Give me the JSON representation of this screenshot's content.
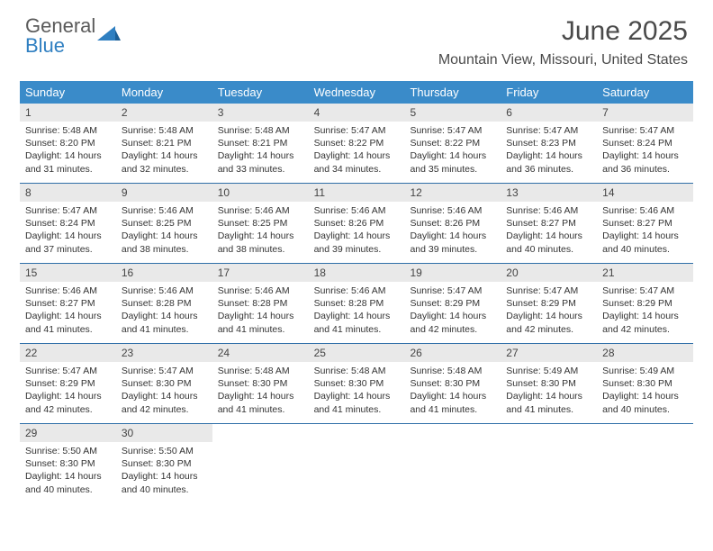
{
  "logo": {
    "text1": "General",
    "text2": "Blue"
  },
  "title": "June 2025",
  "location": "Mountain View, Missouri, United States",
  "colors": {
    "header_bg": "#3a8bc9",
    "header_text": "#ffffff",
    "daynum_bg": "#e9e9e9",
    "week_border": "#2f6fa8",
    "logo_gray": "#5a5a5a",
    "logo_blue": "#2f7fc1"
  },
  "day_headers": [
    "Sunday",
    "Monday",
    "Tuesday",
    "Wednesday",
    "Thursday",
    "Friday",
    "Saturday"
  ],
  "weeks": [
    [
      {
        "n": "1",
        "sr": "Sunrise: 5:48 AM",
        "ss": "Sunset: 8:20 PM",
        "d1": "Daylight: 14 hours",
        "d2": "and 31 minutes."
      },
      {
        "n": "2",
        "sr": "Sunrise: 5:48 AM",
        "ss": "Sunset: 8:21 PM",
        "d1": "Daylight: 14 hours",
        "d2": "and 32 minutes."
      },
      {
        "n": "3",
        "sr": "Sunrise: 5:48 AM",
        "ss": "Sunset: 8:21 PM",
        "d1": "Daylight: 14 hours",
        "d2": "and 33 minutes."
      },
      {
        "n": "4",
        "sr": "Sunrise: 5:47 AM",
        "ss": "Sunset: 8:22 PM",
        "d1": "Daylight: 14 hours",
        "d2": "and 34 minutes."
      },
      {
        "n": "5",
        "sr": "Sunrise: 5:47 AM",
        "ss": "Sunset: 8:22 PM",
        "d1": "Daylight: 14 hours",
        "d2": "and 35 minutes."
      },
      {
        "n": "6",
        "sr": "Sunrise: 5:47 AM",
        "ss": "Sunset: 8:23 PM",
        "d1": "Daylight: 14 hours",
        "d2": "and 36 minutes."
      },
      {
        "n": "7",
        "sr": "Sunrise: 5:47 AM",
        "ss": "Sunset: 8:24 PM",
        "d1": "Daylight: 14 hours",
        "d2": "and 36 minutes."
      }
    ],
    [
      {
        "n": "8",
        "sr": "Sunrise: 5:47 AM",
        "ss": "Sunset: 8:24 PM",
        "d1": "Daylight: 14 hours",
        "d2": "and 37 minutes."
      },
      {
        "n": "9",
        "sr": "Sunrise: 5:46 AM",
        "ss": "Sunset: 8:25 PM",
        "d1": "Daylight: 14 hours",
        "d2": "and 38 minutes."
      },
      {
        "n": "10",
        "sr": "Sunrise: 5:46 AM",
        "ss": "Sunset: 8:25 PM",
        "d1": "Daylight: 14 hours",
        "d2": "and 38 minutes."
      },
      {
        "n": "11",
        "sr": "Sunrise: 5:46 AM",
        "ss": "Sunset: 8:26 PM",
        "d1": "Daylight: 14 hours",
        "d2": "and 39 minutes."
      },
      {
        "n": "12",
        "sr": "Sunrise: 5:46 AM",
        "ss": "Sunset: 8:26 PM",
        "d1": "Daylight: 14 hours",
        "d2": "and 39 minutes."
      },
      {
        "n": "13",
        "sr": "Sunrise: 5:46 AM",
        "ss": "Sunset: 8:27 PM",
        "d1": "Daylight: 14 hours",
        "d2": "and 40 minutes."
      },
      {
        "n": "14",
        "sr": "Sunrise: 5:46 AM",
        "ss": "Sunset: 8:27 PM",
        "d1": "Daylight: 14 hours",
        "d2": "and 40 minutes."
      }
    ],
    [
      {
        "n": "15",
        "sr": "Sunrise: 5:46 AM",
        "ss": "Sunset: 8:27 PM",
        "d1": "Daylight: 14 hours",
        "d2": "and 41 minutes."
      },
      {
        "n": "16",
        "sr": "Sunrise: 5:46 AM",
        "ss": "Sunset: 8:28 PM",
        "d1": "Daylight: 14 hours",
        "d2": "and 41 minutes."
      },
      {
        "n": "17",
        "sr": "Sunrise: 5:46 AM",
        "ss": "Sunset: 8:28 PM",
        "d1": "Daylight: 14 hours",
        "d2": "and 41 minutes."
      },
      {
        "n": "18",
        "sr": "Sunrise: 5:46 AM",
        "ss": "Sunset: 8:28 PM",
        "d1": "Daylight: 14 hours",
        "d2": "and 41 minutes."
      },
      {
        "n": "19",
        "sr": "Sunrise: 5:47 AM",
        "ss": "Sunset: 8:29 PM",
        "d1": "Daylight: 14 hours",
        "d2": "and 42 minutes."
      },
      {
        "n": "20",
        "sr": "Sunrise: 5:47 AM",
        "ss": "Sunset: 8:29 PM",
        "d1": "Daylight: 14 hours",
        "d2": "and 42 minutes."
      },
      {
        "n": "21",
        "sr": "Sunrise: 5:47 AM",
        "ss": "Sunset: 8:29 PM",
        "d1": "Daylight: 14 hours",
        "d2": "and 42 minutes."
      }
    ],
    [
      {
        "n": "22",
        "sr": "Sunrise: 5:47 AM",
        "ss": "Sunset: 8:29 PM",
        "d1": "Daylight: 14 hours",
        "d2": "and 42 minutes."
      },
      {
        "n": "23",
        "sr": "Sunrise: 5:47 AM",
        "ss": "Sunset: 8:30 PM",
        "d1": "Daylight: 14 hours",
        "d2": "and 42 minutes."
      },
      {
        "n": "24",
        "sr": "Sunrise: 5:48 AM",
        "ss": "Sunset: 8:30 PM",
        "d1": "Daylight: 14 hours",
        "d2": "and 41 minutes."
      },
      {
        "n": "25",
        "sr": "Sunrise: 5:48 AM",
        "ss": "Sunset: 8:30 PM",
        "d1": "Daylight: 14 hours",
        "d2": "and 41 minutes."
      },
      {
        "n": "26",
        "sr": "Sunrise: 5:48 AM",
        "ss": "Sunset: 8:30 PM",
        "d1": "Daylight: 14 hours",
        "d2": "and 41 minutes."
      },
      {
        "n": "27",
        "sr": "Sunrise: 5:49 AM",
        "ss": "Sunset: 8:30 PM",
        "d1": "Daylight: 14 hours",
        "d2": "and 41 minutes."
      },
      {
        "n": "28",
        "sr": "Sunrise: 5:49 AM",
        "ss": "Sunset: 8:30 PM",
        "d1": "Daylight: 14 hours",
        "d2": "and 40 minutes."
      }
    ],
    [
      {
        "n": "29",
        "sr": "Sunrise: 5:50 AM",
        "ss": "Sunset: 8:30 PM",
        "d1": "Daylight: 14 hours",
        "d2": "and 40 minutes."
      },
      {
        "n": "30",
        "sr": "Sunrise: 5:50 AM",
        "ss": "Sunset: 8:30 PM",
        "d1": "Daylight: 14 hours",
        "d2": "and 40 minutes."
      },
      null,
      null,
      null,
      null,
      null
    ]
  ]
}
